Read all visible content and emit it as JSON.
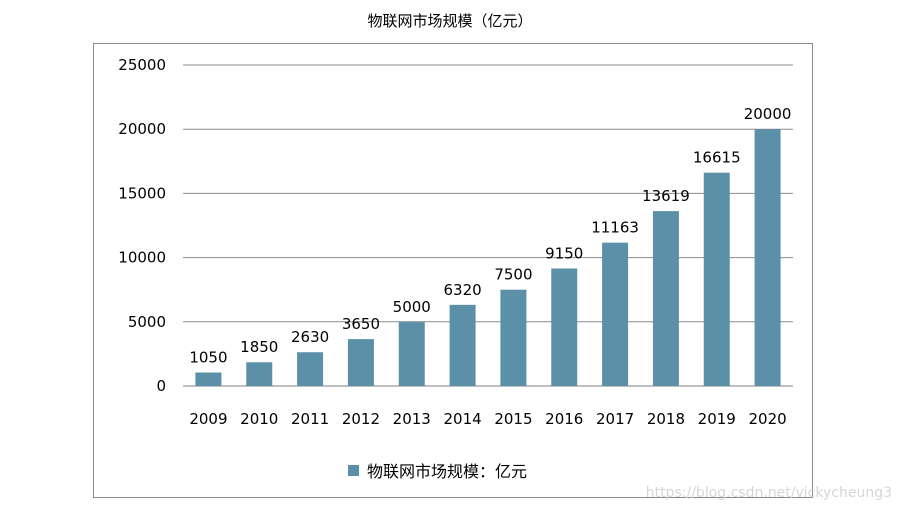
{
  "chart_data": {
    "type": "bar",
    "title": "物联网市场规模（亿元）",
    "categories": [
      "2009",
      "2010",
      "2011",
      "2012",
      "2013",
      "2014",
      "2015",
      "2016",
      "2017",
      "2018",
      "2019",
      "2020"
    ],
    "series": [
      {
        "name": "物联网市场规模：亿元",
        "values": [
          1050,
          1850,
          2630,
          3650,
          5000,
          6320,
          7500,
          9150,
          11163,
          13619,
          16615,
          20000
        ]
      }
    ],
    "ylim": [
      0,
      25000
    ],
    "yticks": [
      0,
      5000,
      10000,
      15000,
      20000,
      25000
    ],
    "grid": true,
    "legend_position": "bottom",
    "bar_color": "#5b90a8"
  },
  "watermark": "https://blog.csdn.net/vickycheung3"
}
